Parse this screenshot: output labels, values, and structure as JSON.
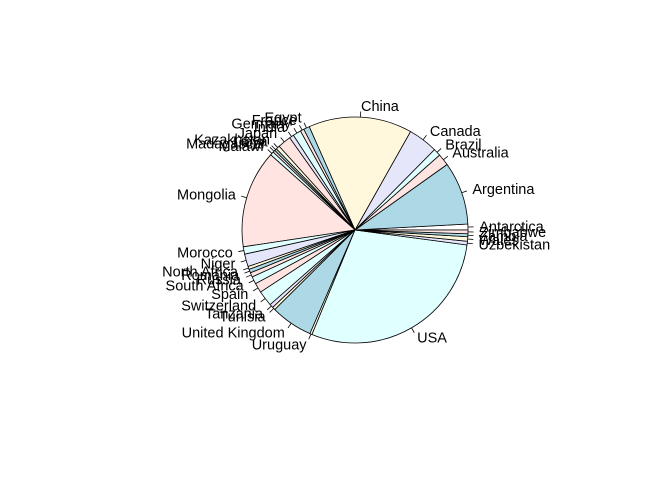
{
  "chart_data": {
    "type": "pie",
    "title": "",
    "start_angle_deg": 0,
    "direction": "counterclockwise",
    "legend": "none",
    "categories": [
      "Antarctica",
      "Argentina",
      "Australia",
      "Brazil",
      "Canada",
      "China",
      "Egypt",
      "France",
      "Germany",
      "India",
      "Japan",
      "Kazakhstan",
      "Libya",
      "Madagascar",
      "Malawi",
      "Mongolia",
      "Morocco",
      "Niger",
      "North Africa",
      "Romania",
      "Russia",
      "South Africa",
      "Spain",
      "Switzerland",
      "Tanzania",
      "Tunisia",
      "United Kingdom",
      "Uruguay",
      "USA",
      "Uzbekistan",
      "Wales",
      "Zambia",
      "Zimbabwe"
    ],
    "values": [
      0.8,
      8.5,
      1.6,
      1.0,
      4.0,
      14.0,
      0.8,
      0.5,
      1.1,
      0.6,
      1.8,
      0.5,
      0.3,
      0.3,
      0.5,
      13.2,
      1.0,
      1.7,
      0.4,
      0.5,
      0.6,
      1.0,
      1.3,
      2.1,
      0.5,
      0.4,
      5.7,
      0.3,
      27.5,
      0.5,
      0.6,
      0.4,
      0.5
    ],
    "colors": [
      "#ffffff",
      "#add8e6",
      "#ffe4e1",
      "#e0ffff",
      "#e6e6fa",
      "#fff8dc",
      "#add8e6",
      "#ffe4e1",
      "#e0ffff",
      "#e6e6fa",
      "#ffe4e1",
      "#fff8dc",
      "#add8e6",
      "#ffe4e1",
      "#e0ffff",
      "#ffe4e1",
      "#e0ffff",
      "#e6e6fa",
      "#fff8dc",
      "#add8e6",
      "#ffe4e1",
      "#e0ffff",
      "#ffe4e1",
      "#e0ffff",
      "#e6e6fa",
      "#fff8dc",
      "#add8e6",
      "#fff8dc",
      "#e0ffff",
      "#e6e6fa",
      "#fff8dc",
      "#add8e6",
      "#ffe4e1"
    ]
  }
}
